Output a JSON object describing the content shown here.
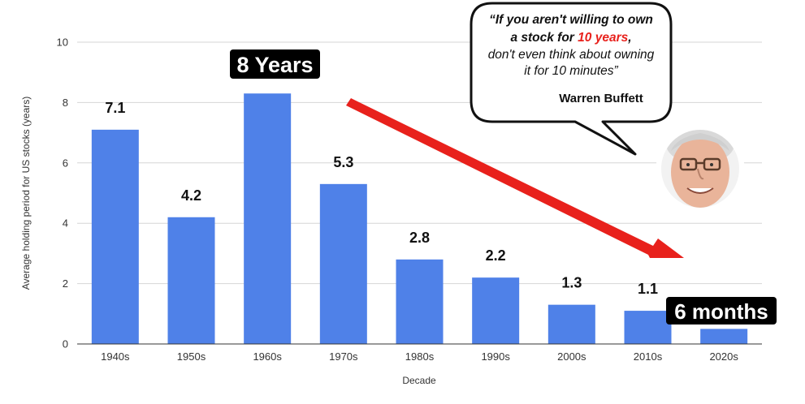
{
  "chart_data": {
    "type": "bar",
    "categories": [
      "1940s",
      "1950s",
      "1960s",
      "1970s",
      "1980s",
      "1990s",
      "2000s",
      "2010s",
      "2020s"
    ],
    "values": [
      7.1,
      4.2,
      8.3,
      5.3,
      2.8,
      2.2,
      1.3,
      1.1,
      0.5
    ],
    "data_labels": [
      "7.1",
      "4.2",
      "",
      "5.3",
      "2.8",
      "2.2",
      "1.3",
      "1.1",
      ""
    ],
    "xlabel": "Decade",
    "ylabel": "Average holding period for US stocks (years)",
    "ylim": [
      0,
      10
    ],
    "yticks": [
      "0",
      "2",
      "4",
      "6",
      "8",
      "10"
    ],
    "grid": true,
    "bar_color": "#4f81e8",
    "trend_arrow_color": "#e8211c"
  },
  "callouts": {
    "peak": "8 Years",
    "latest": "6 months"
  },
  "quote": {
    "line1": "“If you aren't willing to own",
    "line2_pre": "a stock for ",
    "line2_highlight": "10 years",
    "line2_post": ",",
    "line3": "don't even think about owning",
    "line4": "it for 10 minutes”",
    "author": "Warren Buffett",
    "highlight_color": "#e8211c"
  },
  "portrait": "warren-buffett-portrait"
}
